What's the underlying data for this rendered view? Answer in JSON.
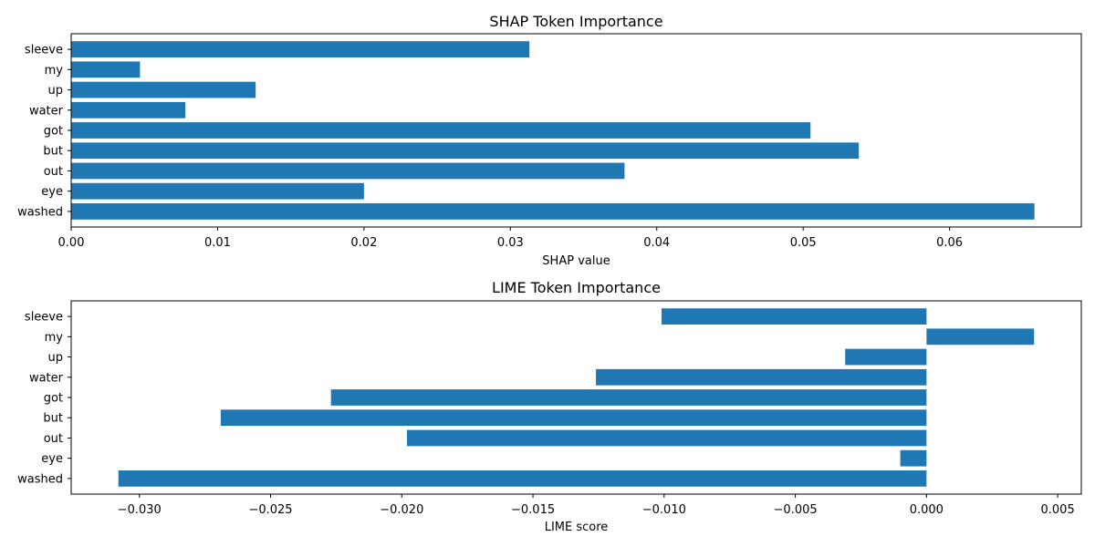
{
  "chart_data": [
    {
      "type": "bar",
      "orientation": "horizontal",
      "title": "SHAP Token Importance",
      "xlabel": "SHAP value",
      "ylabel": "",
      "categories": [
        "sleeve",
        "my",
        "up",
        "water",
        "got",
        "but",
        "out",
        "eye",
        "washed"
      ],
      "values": [
        0.0313,
        0.0047,
        0.0126,
        0.0078,
        0.0505,
        0.0538,
        0.0378,
        0.02,
        0.0658
      ],
      "xlim": [
        0,
        0.069
      ],
      "xticks": [
        0.0,
        0.01,
        0.02,
        0.03,
        0.04,
        0.05,
        0.06
      ],
      "xtick_labels": [
        "0.00",
        "0.01",
        "0.02",
        "0.03",
        "0.04",
        "0.05",
        "0.06"
      ],
      "grid": false,
      "bar_color": "#1f77b4"
    },
    {
      "type": "bar",
      "orientation": "horizontal",
      "title": "LIME Token Importance",
      "xlabel": "LIME score",
      "ylabel": "",
      "categories": [
        "sleeve",
        "my",
        "up",
        "water",
        "got",
        "but",
        "out",
        "eye",
        "washed"
      ],
      "values": [
        -0.0101,
        0.0041,
        -0.0031,
        -0.0126,
        -0.0227,
        -0.0269,
        -0.0198,
        -0.001,
        -0.0308
      ],
      "xlim": [
        -0.0326,
        0.0059
      ],
      "xticks": [
        -0.03,
        -0.025,
        -0.02,
        -0.015,
        -0.01,
        -0.005,
        0.0,
        0.005
      ],
      "xtick_labels": [
        "−0.030",
        "−0.025",
        "−0.020",
        "−0.015",
        "−0.010",
        "−0.005",
        "0.000",
        "0.005"
      ],
      "grid": false,
      "bar_color": "#1f77b4"
    }
  ]
}
